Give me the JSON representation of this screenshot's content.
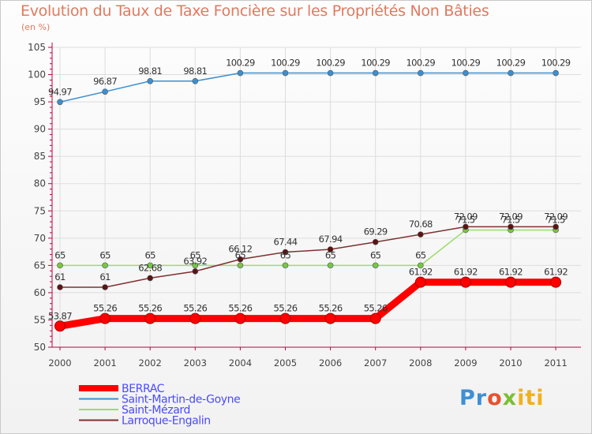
{
  "header": {
    "title": "Evolution du Taux de Taxe Foncière sur les Propriétés Non Bâties",
    "unit": "(en %)"
  },
  "logo": {
    "text": "Proxiti",
    "parts": [
      "Pr",
      "o",
      "x",
      "iti"
    ]
  },
  "colors": {
    "text_accent": "#e07a5f",
    "axis": "#c0003c",
    "grid": "#dddddd",
    "tick_labels": "#444444",
    "legend_text": "#4a4aff"
  },
  "chart_data": {
    "type": "line",
    "title": "Evolution du Taux de Taxe Foncière sur les Propriétés Non Bâties",
    "ylabel": "(en %)",
    "xlabel": "",
    "x": [
      "2000",
      "2001",
      "2002",
      "2003",
      "2004",
      "2005",
      "2006",
      "2007",
      "2008",
      "2009",
      "2010",
      "2011"
    ],
    "ylim": [
      50,
      105
    ],
    "yticks": [
      50,
      55,
      60,
      65,
      70,
      75,
      80,
      85,
      90,
      95,
      100,
      105
    ],
    "grid": true,
    "legend_position": "bottom-left",
    "series": [
      {
        "name": "BERRAC",
        "color": "#ff0000",
        "highlight": true,
        "values": [
          53.87,
          55.26,
          55.26,
          55.26,
          55.26,
          55.26,
          55.26,
          55.26,
          61.92,
          61.92,
          61.92,
          61.92
        ],
        "labels": [
          "53.87",
          "55.26",
          "55.26",
          "55.26",
          "55.26",
          "55.26",
          "55.26",
          "55.26",
          "61.92",
          "61.92",
          "61.92",
          "61.92"
        ]
      },
      {
        "name": "Saint-Martin-de-Goyne",
        "color": "#3c8fd0",
        "marker_color": "#3c8fd0",
        "values": [
          94.97,
          96.87,
          98.81,
          98.81,
          100.29,
          100.29,
          100.29,
          100.29,
          100.29,
          100.29,
          100.29,
          100.29
        ],
        "labels": [
          "94.97",
          "96.87",
          "98.81",
          "98.81",
          "100.29",
          "100.29",
          "100.29",
          "100.29",
          "100.29",
          "100.29",
          "100.29",
          "100.29"
        ]
      },
      {
        "name": "Saint-Mézard",
        "color": "#99dd66",
        "marker_color": "#77c840",
        "values": [
          65,
          65,
          65,
          65,
          65,
          65,
          65,
          65,
          65,
          71.5,
          71.5,
          71.5
        ],
        "labels": [
          "65",
          "65",
          "65",
          "65",
          "65",
          "65",
          "65",
          "65",
          "65",
          "71.5",
          "71.5",
          "71.5"
        ]
      },
      {
        "name": "Larroque-Engalin",
        "color": "#803030",
        "marker_color": "#5a1414",
        "values": [
          61,
          61,
          62.68,
          63.92,
          66.12,
          67.44,
          67.94,
          69.29,
          70.68,
          72.09,
          72.09,
          72.09
        ],
        "labels": [
          "61",
          "61",
          "62.68",
          "63.92",
          "66.12",
          "67.44",
          "67.94",
          "69.29",
          "70.68",
          "72.09",
          "72.09",
          "72.09"
        ]
      }
    ]
  }
}
